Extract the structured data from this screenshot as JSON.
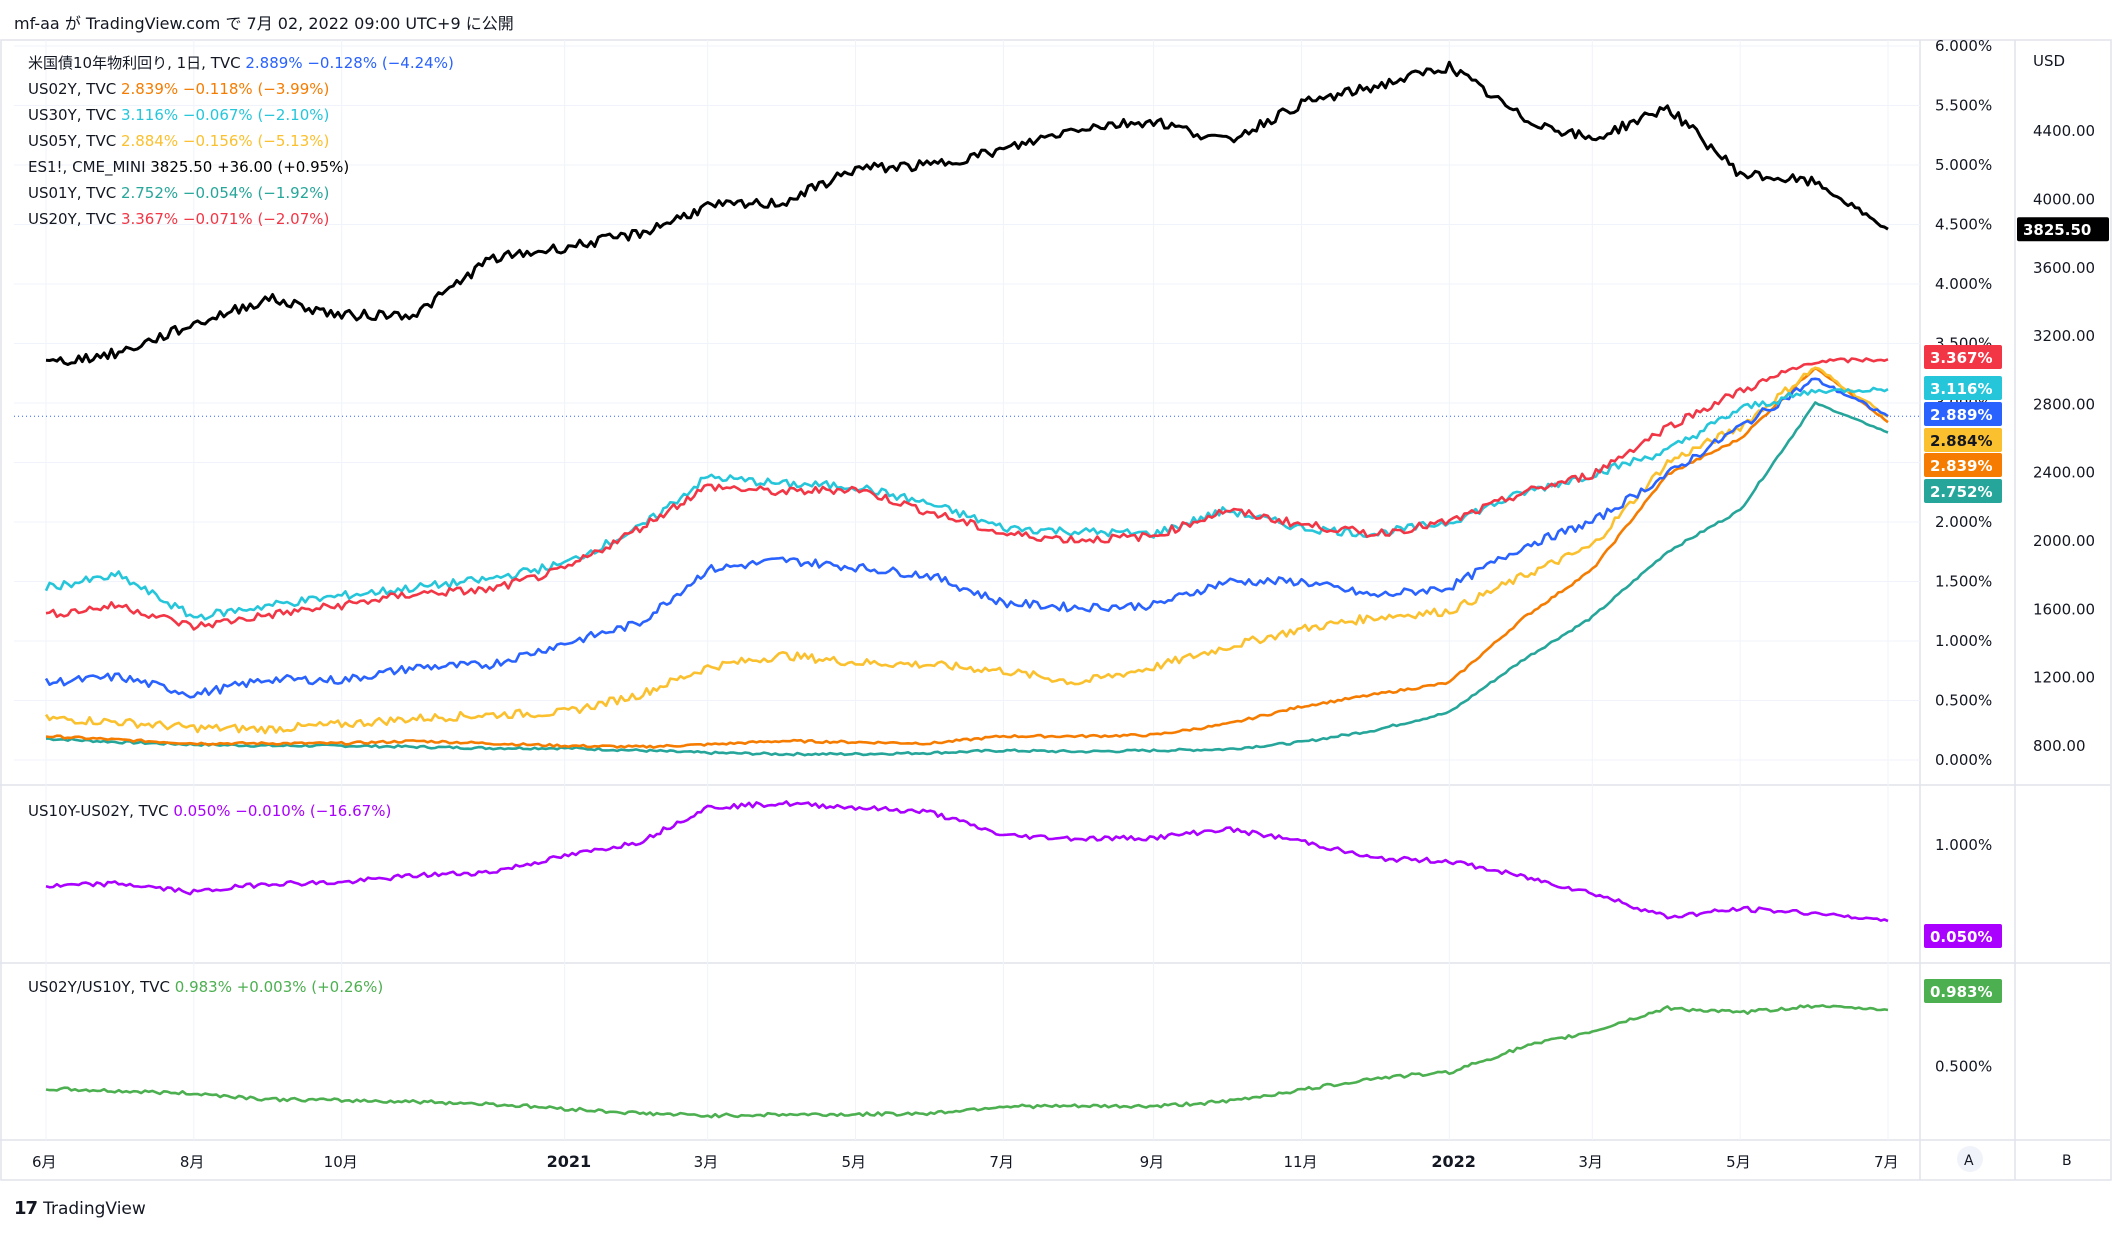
{
  "header": {
    "text": "mf-aa が TradingView.com で 7月 02, 2022 09:00 UTC+9 に公開"
  },
  "footer": {
    "brand": "TradingView",
    "logo": "tradingview-logo"
  },
  "colors": {
    "us10y": "#2962ff",
    "us02y": "#f57c00",
    "us30y": "#26c6da",
    "us05y": "#fbc02d",
    "es1": "#000000",
    "us01y": "#26a69a",
    "us20y": "#f23645",
    "spread": "#aa00ff",
    "ratio": "#4caf50",
    "grid": "#f0f3fa"
  },
  "legend_main": [
    {
      "name": "米国債10年物利回り, 1日, TVC",
      "value": "2.889%",
      "change": "−0.128% (−4.24%)",
      "key": "us10y"
    },
    {
      "name": "US02Y, TVC",
      "value": "2.839%",
      "change": "−0.118% (−3.99%)",
      "key": "us02y"
    },
    {
      "name": "US30Y, TVC",
      "value": "3.116%",
      "change": "−0.067% (−2.10%)",
      "key": "us30y"
    },
    {
      "name": "US05Y, TVC",
      "value": "2.884%",
      "change": "−0.156% (−5.13%)",
      "key": "us05y"
    },
    {
      "name": "ES1!, CME_MINI",
      "value": "3825.50",
      "change": "+36.00 (+0.95%)",
      "key": "es1"
    },
    {
      "name": "US01Y, TVC",
      "value": "2.752%",
      "change": "−0.054% (−1.92%)",
      "key": "us01y"
    },
    {
      "name": "US20Y, TVC",
      "value": "3.367%",
      "change": "−0.071% (−2.07%)",
      "key": "us20y"
    }
  ],
  "legend_spread": {
    "name": "US10Y-US02Y, TVC",
    "value": "0.050%",
    "change": "−0.010% (−16.67%)"
  },
  "legend_ratio": {
    "name": "US02Y/US10Y, TVC",
    "value": "0.983%",
    "change": "+0.003% (+0.26%)"
  },
  "axis": {
    "usd_label": "USD",
    "pct_ticks": [
      "6.000%",
      "5.500%",
      "5.000%",
      "4.500%",
      "4.000%",
      "3.500%",
      "3.000%",
      "2.500%",
      "2.000%",
      "1.500%",
      "1.000%",
      "0.500%",
      "0.000%"
    ],
    "usd_ticks": [
      "4400.00",
      "4000.00",
      "3600.00",
      "3200.00",
      "2800.00",
      "2400.00",
      "2000.00",
      "1600.00",
      "1200.00",
      "800.00"
    ],
    "spread_ticks": [
      "1.000%"
    ],
    "ratio_ticks": [
      "0.500%"
    ],
    "x_ticks": [
      "6月",
      "8月",
      "10月",
      "2021",
      "3月",
      "5月",
      "7月",
      "9月",
      "11月",
      "2022",
      "3月",
      "5月",
      "7月"
    ],
    "bold_x_ticks": [
      "2021",
      "2022"
    ],
    "auto_button": "A",
    "b_button": "B"
  },
  "price_tags": [
    {
      "label": "3825.50",
      "key": "es1"
    },
    {
      "label": "3.367%",
      "key": "us20y"
    },
    {
      "label": "3.116%",
      "key": "us30y"
    },
    {
      "label": "2.889%",
      "key": "us10y"
    },
    {
      "label": "2.884%",
      "key": "us05y"
    },
    {
      "label": "2.839%",
      "key": "us02y"
    },
    {
      "label": "2.752%",
      "key": "us01y"
    },
    {
      "label": "0.050%",
      "key": "spread"
    },
    {
      "label": "0.983%",
      "key": "ratio"
    }
  ],
  "chart_data": [
    {
      "type": "line",
      "x": [
        "2020-06-01",
        "2020-07-01",
        "2020-08-01",
        "2020-09-01",
        "2020-10-01",
        "2020-11-01",
        "2020-12-01",
        "2021-01-01",
        "2021-02-01",
        "2021-03-01",
        "2021-04-01",
        "2021-05-01",
        "2021-06-01",
        "2021-07-01",
        "2021-08-01",
        "2021-09-01",
        "2021-10-01",
        "2021-11-01",
        "2021-12-01",
        "2022-01-01",
        "2022-02-01",
        "2022-03-01",
        "2022-04-01",
        "2022-05-01",
        "2022-06-01",
        "2022-07-01"
      ],
      "series": [
        {
          "name": "ES1!, CME_MINI",
          "axis": "usd",
          "key": "es1",
          "values": [
            3040,
            3100,
            3270,
            3420,
            3320,
            3330,
            3650,
            3720,
            3800,
            3960,
            3980,
            4180,
            4200,
            4290,
            4420,
            4460,
            4340,
            4560,
            4660,
            4780,
            4470,
            4350,
            4540,
            4150,
            4100,
            3825.5
          ]
        },
        {
          "name": "US20Y, TVC",
          "axis": "pct",
          "key": "us20y",
          "values": [
            1.22,
            1.3,
            1.12,
            1.22,
            1.3,
            1.4,
            1.43,
            1.6,
            1.95,
            2.3,
            2.25,
            2.28,
            2.08,
            1.9,
            1.85,
            1.88,
            2.1,
            1.98,
            1.9,
            2.0,
            2.25,
            2.4,
            2.8,
            3.1,
            3.35,
            3.367
          ]
        },
        {
          "name": "US30Y, TVC",
          "axis": "pct",
          "key": "us30y",
          "values": [
            1.45,
            1.55,
            1.2,
            1.3,
            1.38,
            1.45,
            1.52,
            1.65,
            1.95,
            2.38,
            2.32,
            2.3,
            2.15,
            1.95,
            1.92,
            1.9,
            2.1,
            1.95,
            1.9,
            2.0,
            2.25,
            2.4,
            2.6,
            2.95,
            3.1,
            3.116
          ]
        },
        {
          "name": "米国債10年物利回り, 1日, TVC",
          "axis": "pct",
          "key": "us10y",
          "values": [
            0.65,
            0.7,
            0.55,
            0.68,
            0.67,
            0.78,
            0.8,
            0.98,
            1.15,
            1.6,
            1.68,
            1.62,
            1.55,
            1.32,
            1.28,
            1.3,
            1.5,
            1.5,
            1.38,
            1.45,
            1.8,
            2.0,
            2.4,
            2.8,
            3.2,
            2.889
          ]
        },
        {
          "name": "US05Y, TVC",
          "axis": "pct",
          "key": "us05y",
          "values": [
            0.35,
            0.32,
            0.27,
            0.26,
            0.3,
            0.35,
            0.38,
            0.4,
            0.55,
            0.78,
            0.88,
            0.82,
            0.8,
            0.75,
            0.65,
            0.78,
            0.95,
            1.1,
            1.2,
            1.25,
            1.55,
            1.8,
            2.5,
            2.8,
            3.3,
            2.884
          ]
        },
        {
          "name": "US02Y, TVC",
          "axis": "pct",
          "key": "us02y",
          "values": [
            0.2,
            0.17,
            0.14,
            0.14,
            0.14,
            0.16,
            0.14,
            0.12,
            0.11,
            0.13,
            0.16,
            0.15,
            0.14,
            0.2,
            0.2,
            0.21,
            0.3,
            0.45,
            0.55,
            0.65,
            1.2,
            1.6,
            2.4,
            2.7,
            3.3,
            2.839
          ]
        },
        {
          "name": "US01Y, TVC",
          "axis": "pct",
          "key": "us01y",
          "values": [
            0.18,
            0.15,
            0.13,
            0.12,
            0.12,
            0.11,
            0.1,
            0.1,
            0.08,
            0.06,
            0.05,
            0.05,
            0.06,
            0.08,
            0.07,
            0.08,
            0.09,
            0.15,
            0.25,
            0.4,
            0.85,
            1.2,
            1.75,
            2.1,
            3.0,
            2.752
          ]
        }
      ]
    },
    {
      "type": "line",
      "x": [
        "2020-06-01",
        "2020-07-01",
        "2020-08-01",
        "2020-09-01",
        "2020-10-01",
        "2020-11-01",
        "2020-12-01",
        "2021-01-01",
        "2021-02-01",
        "2021-03-01",
        "2021-04-01",
        "2021-05-01",
        "2021-06-01",
        "2021-07-01",
        "2021-08-01",
        "2021-09-01",
        "2021-10-01",
        "2021-11-01",
        "2021-12-01",
        "2022-01-01",
        "2022-02-01",
        "2022-03-01",
        "2022-04-01",
        "2022-05-01",
        "2022-06-01",
        "2022-07-01"
      ],
      "series": [
        {
          "name": "US10Y-US02Y, TVC",
          "key": "spread",
          "values": [
            0.48,
            0.52,
            0.41,
            0.52,
            0.53,
            0.62,
            0.66,
            0.86,
            1.04,
            1.47,
            1.52,
            1.47,
            1.41,
            1.12,
            1.08,
            1.09,
            1.2,
            1.05,
            0.83,
            0.8,
            0.6,
            0.4,
            0.1,
            0.2,
            0.15,
            0.05
          ]
        }
      ]
    },
    {
      "type": "line",
      "x": [
        "2020-06-01",
        "2020-07-01",
        "2020-08-01",
        "2020-09-01",
        "2020-10-01",
        "2020-11-01",
        "2020-12-01",
        "2021-01-01",
        "2021-02-01",
        "2021-03-01",
        "2021-04-01",
        "2021-05-01",
        "2021-06-01",
        "2021-07-01",
        "2021-08-01",
        "2021-09-01",
        "2021-10-01",
        "2021-11-01",
        "2021-12-01",
        "2022-01-01",
        "2022-02-01",
        "2022-03-01",
        "2022-04-01",
        "2022-05-01",
        "2022-06-01",
        "2022-07-01"
      ],
      "series": [
        {
          "name": "US02Y/US10Y, TVC",
          "key": "ratio",
          "values": [
            0.31,
            0.29,
            0.27,
            0.22,
            0.21,
            0.2,
            0.18,
            0.14,
            0.1,
            0.08,
            0.09,
            0.09,
            0.1,
            0.16,
            0.16,
            0.16,
            0.2,
            0.3,
            0.4,
            0.45,
            0.67,
            0.8,
            1.0,
            0.96,
            1.02,
            0.983
          ]
        }
      ]
    }
  ]
}
